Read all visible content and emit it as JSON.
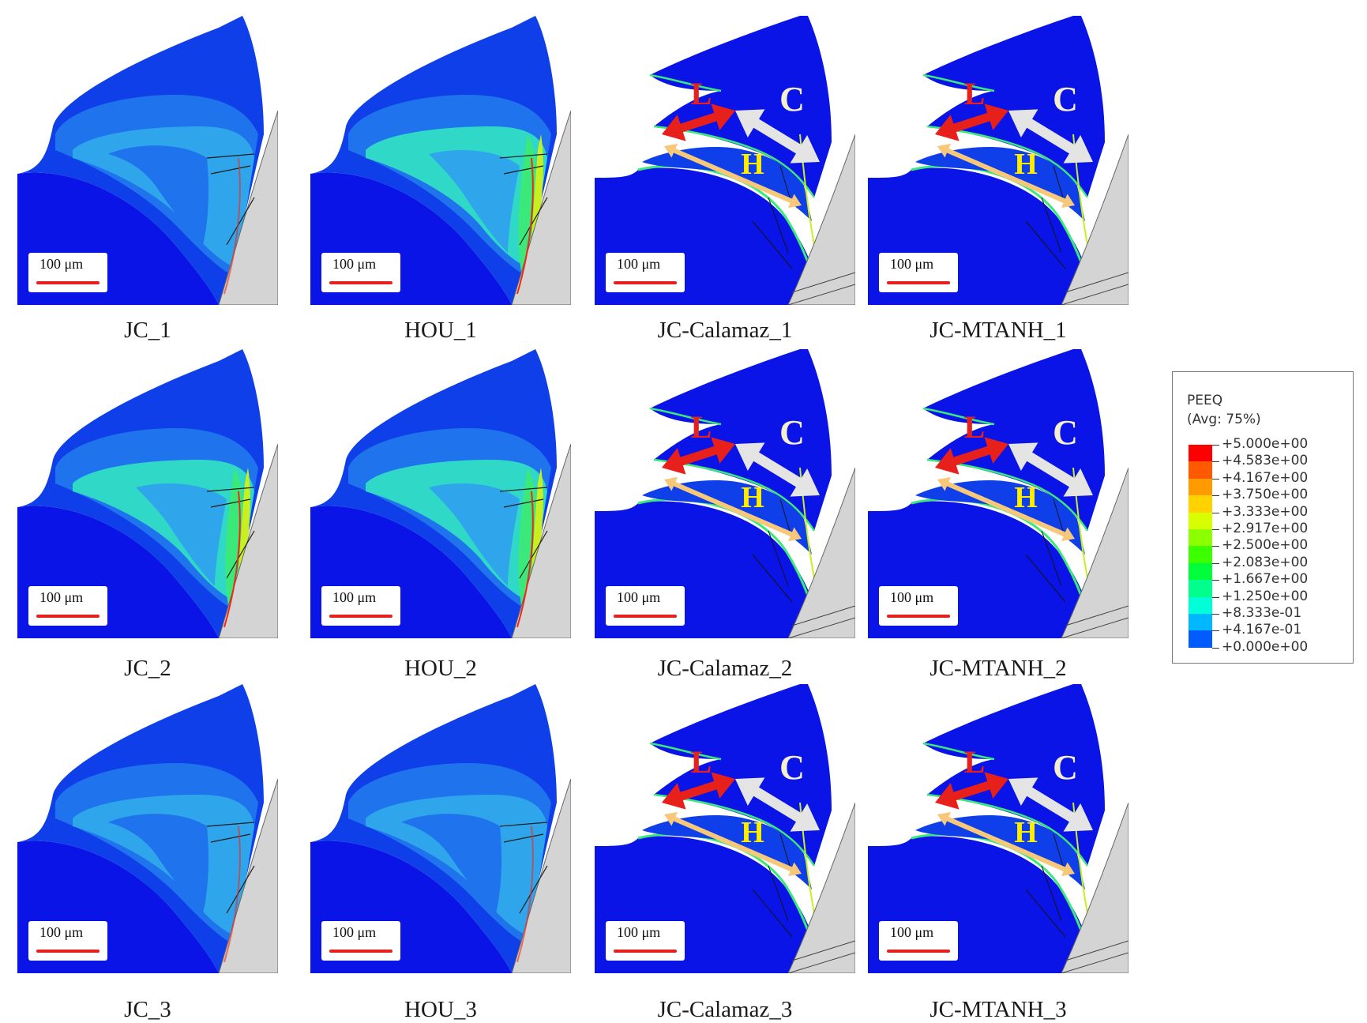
{
  "scale_label": "100 μm",
  "panels": [
    {
      "caption": "JC_1",
      "style": "bulk"
    },
    {
      "caption": "HOU_1",
      "style": "bulk-hot"
    },
    {
      "caption": "JC-Calamaz_1",
      "style": "segment"
    },
    {
      "caption": "JC-MTANH_1",
      "style": "segment"
    },
    {
      "caption": "JC_2",
      "style": "bulk-hot"
    },
    {
      "caption": "HOU_2",
      "style": "bulk-hot"
    },
    {
      "caption": "JC-Calamaz_2",
      "style": "segment"
    },
    {
      "caption": "JC-MTANH_2",
      "style": "segment"
    },
    {
      "caption": "JC_3",
      "style": "bulk"
    },
    {
      "caption": "HOU_3",
      "style": "bulk"
    },
    {
      "caption": "JC-Calamaz_3",
      "style": "segment"
    },
    {
      "caption": "JC-MTANH_3",
      "style": "segment"
    }
  ],
  "arrow_labels": {
    "L": "L",
    "C": "C",
    "H": "H"
  },
  "arrow_colors": {
    "L": "#e8201c",
    "C": "#e4e4e4",
    "H": "#f7c87a",
    "H_text": "#ffee00",
    "C_text": "#f4efcf",
    "L_text": "#e8201c"
  },
  "legend": {
    "title": "PEEQ",
    "subtitle": "(Avg: 75%)",
    "entries": [
      {
        "label": "+5.000e+00",
        "color": "#ff0000"
      },
      {
        "label": "+4.583e+00",
        "color": "#ff5a00"
      },
      {
        "label": "+4.167e+00",
        "color": "#ff9a00"
      },
      {
        "label": "+3.750e+00",
        "color": "#ffd200"
      },
      {
        "label": "+3.333e+00",
        "color": "#d8ff00"
      },
      {
        "label": "+2.917e+00",
        "color": "#8cff00"
      },
      {
        "label": "+2.500e+00",
        "color": "#3cff00"
      },
      {
        "label": "+2.083e+00",
        "color": "#00ff3a"
      },
      {
        "label": "+1.667e+00",
        "color": "#00ff8c"
      },
      {
        "label": "+1.250e+00",
        "color": "#00ffd8"
      },
      {
        "label": "+8.333e-01",
        "color": "#00b8ff"
      },
      {
        "label": "+4.167e-01",
        "color": "#005cff"
      },
      {
        "label": "+0.000e+00",
        "color": "#0000ff"
      }
    ]
  }
}
